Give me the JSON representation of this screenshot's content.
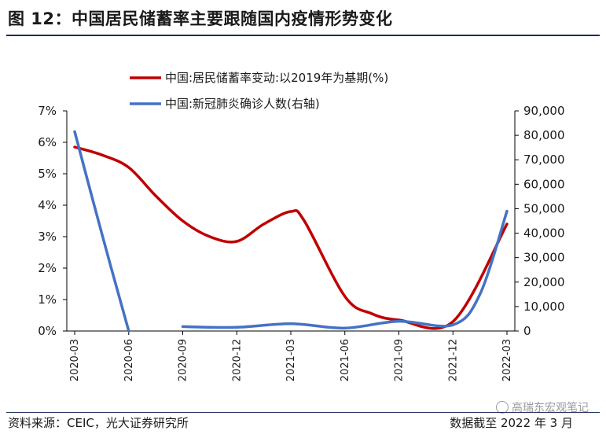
{
  "title": "图 12：中国居民储蓄率主要跟随国内疫情形势变化",
  "source": "资料来源：CEIC，光大证券研究所",
  "note": "数据截至 2022 年 3 月",
  "watermark": "高瑞东宏观笔记",
  "colors": {
    "red": "#c00000",
    "blue": "#4472c4",
    "title_rule": "#1f2d5a"
  },
  "chart_data": {
    "type": "line",
    "x": [
      "2020-03",
      "2020-06",
      "2020-09",
      "2020-12",
      "2021-03",
      "2021-06",
      "2021-09",
      "2021-12",
      "2022-03"
    ],
    "left_axis": {
      "ylim": [
        0,
        7
      ],
      "ticks": [
        "0%",
        "1%",
        "2%",
        "3%",
        "4%",
        "5%",
        "6%",
        "7%"
      ]
    },
    "right_axis": {
      "ylim": [
        0,
        90000
      ],
      "ticks": [
        "0",
        "10,000",
        "20,000",
        "30,000",
        "40,000",
        "50,000",
        "60,000",
        "70,000",
        "80,000",
        "90,000"
      ]
    },
    "legend_position": "top",
    "series": [
      {
        "name": "中国:居民储蓄率变动:以2019年为基期(%)",
        "axis": "left",
        "color": "#c00000",
        "points": [
          [
            0,
            5.85
          ],
          [
            0.5,
            5.6
          ],
          [
            1,
            5.2
          ],
          [
            1.5,
            4.3
          ],
          [
            2,
            3.5
          ],
          [
            2.5,
            3.0
          ],
          [
            3,
            2.85
          ],
          [
            3.5,
            3.4
          ],
          [
            4,
            3.8
          ],
          [
            4.25,
            3.5
          ],
          [
            5,
            1.1
          ],
          [
            5.5,
            0.55
          ],
          [
            6,
            0.35
          ],
          [
            7,
            0.3
          ],
          [
            8,
            3.4
          ]
        ]
      },
      {
        "name": "中国:新冠肺炎确诊人数(右轴)",
        "axis": "right",
        "color": "#4472c4",
        "points": [
          [
            0,
            81500
          ],
          [
            0.5,
            40000
          ],
          [
            1,
            0
          ],
          [
            1.3,
            null
          ],
          [
            2,
            1800
          ],
          [
            3,
            1500
          ],
          [
            4,
            3000
          ],
          [
            5,
            1200
          ],
          [
            6,
            4000
          ],
          [
            7,
            2500
          ],
          [
            7.5,
            15000
          ],
          [
            8,
            49000
          ]
        ]
      }
    ]
  }
}
